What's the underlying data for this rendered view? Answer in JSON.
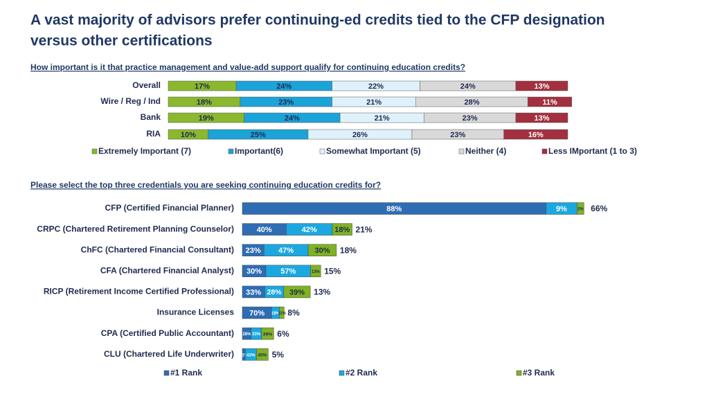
{
  "header": {
    "title": [
      "A vast majority of advisors prefer continuing-ed credits tied to the CFP designation",
      "versus other certifications"
    ]
  },
  "chart_data": [
    {
      "type": "stackedbar",
      "title": "How important is it that practice management and value-add support qualify for continuing education credits?",
      "categories": [
        "Overall",
        "Wire / Reg / Ind",
        "Bank",
        "RIA"
      ],
      "series": [
        {
          "name": "Extremely Important (7)",
          "color": "#8ab82e",
          "values": [
            17,
            18,
            19,
            10
          ],
          "value_labels": [
            "17%",
            "18%",
            "19%",
            "10%"
          ]
        },
        {
          "name": "Important(6)",
          "color": "#1ca3d8",
          "values": [
            24,
            23,
            24,
            25
          ],
          "value_labels": [
            "24%",
            "23%",
            "24%",
            "25%"
          ]
        },
        {
          "name": "Somewhat Important (5)",
          "color": "#dff2fb",
          "values": [
            22,
            21,
            21,
            26
          ],
          "value_labels": [
            "22%",
            "21%",
            "21%",
            "26%"
          ]
        },
        {
          "name": "Neither (4)",
          "color": "#d9d9d9",
          "values": [
            24,
            28,
            23,
            23
          ],
          "value_labels": [
            "24%",
            "28%",
            "23%",
            "23%"
          ]
        },
        {
          "name": "Less IMportant (1 to 3)",
          "color": "#a3303e",
          "values": [
            13,
            11,
            13,
            16
          ],
          "value_labels": [
            "13%",
            "11%",
            "13%",
            "16%"
          ]
        }
      ]
    },
    {
      "type": "sharebar",
      "title": "Please select the top three credentials you are seeking continuing education credits for?",
      "categories": [
        "CFP (Certified Financial Planner)",
        "CRPC (Chartered Retirement Planning Counselor)",
        "ChFC (Chartered Financial Consultant)",
        "CFA (Chartered Financial Analyst)",
        "RICP (Retirement Income Certified Professional)",
        "Insurance Licenses",
        "CPA (Certified Public Accountant)",
        "CLU (Chartered Life Underwriter)"
      ],
      "totals": [
        66,
        21,
        18,
        15,
        13,
        8,
        6,
        5
      ],
      "total_labels": [
        "66%",
        "21%",
        "18%",
        "15%",
        "13%",
        "8%",
        "6%",
        "5%"
      ],
      "series": [
        {
          "name": "#1 Rank",
          "color": "#2e6db4",
          "values": [
            88,
            40,
            23,
            30,
            33,
            70,
            28,
            11
          ],
          "value_labels": [
            "88%",
            "40%",
            "23%",
            "30%",
            "33%",
            "70%",
            "28%",
            "11%"
          ]
        },
        {
          "name": "#2 Rank",
          "color": "#1ba8e0",
          "values": [
            9,
            42,
            47,
            57,
            28,
            19,
            33,
            43
          ],
          "value_labels": [
            "9%",
            "42%",
            "47%",
            "57%",
            "28%",
            "19%",
            "33%",
            "43%"
          ]
        },
        {
          "name": "#3 Rank",
          "color": "#7fb224",
          "values": [
            2,
            18,
            30,
            13,
            39,
            11,
            39,
            45
          ],
          "value_labels": [
            "2%",
            "18%",
            "30%",
            "13%",
            "39%",
            "11%",
            "39%",
            "45%"
          ]
        }
      ]
    }
  ]
}
